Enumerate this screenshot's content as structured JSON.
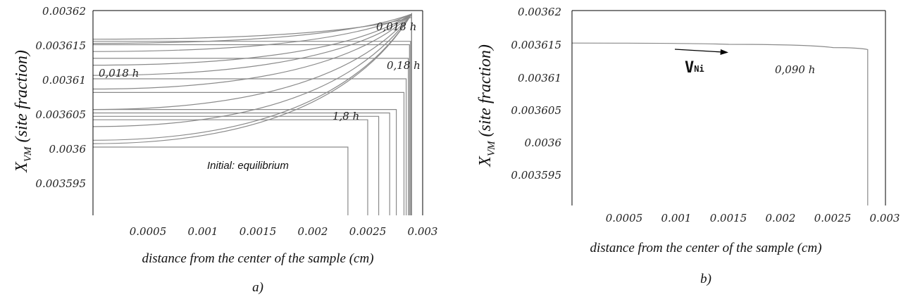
{
  "chart_data": [
    {
      "panel_label": "a)",
      "type": "line",
      "ylabel": {
        "main": "X",
        "sub": "VM",
        "suffix": " (site fraction)"
      },
      "xlabel": "distance from the center of the sample (cm)",
      "xlim": [
        0,
        0.003
      ],
      "ylim": [
        0.00359,
        0.00362
      ],
      "x_ticks": [
        "0.0005",
        "0.001",
        "0.0015",
        "0.002",
        "0.0025",
        "0.003"
      ],
      "y_ticks": [
        "0.00362",
        "0.003615",
        "0.00361",
        "0.003605",
        "0.0036",
        "0.003595"
      ],
      "annotations": [
        "0,018 h",
        "0,18 h",
        "0,018 h",
        "1,8 h"
      ],
      "initial_label": "Initial: equilibrium",
      "series": [
        {
          "values": [
            [
              0,
              0.0036
            ],
            [
              0.00232,
              0.0036
            ],
            [
              0.00232,
              0.00359
            ]
          ]
        },
        {
          "values": [
            [
              0,
              0.003604
            ],
            [
              0.0025,
              0.003604
            ],
            [
              0.0025,
              0.00359
            ]
          ]
        },
        {
          "values": [
            [
              0,
              0.0036045
            ],
            [
              0.0026,
              0.0036045
            ],
            [
              0.0026,
              0.00359
            ]
          ]
        },
        {
          "values": [
            [
              0,
              0.003605
            ],
            [
              0.0027,
              0.003605
            ],
            [
              0.0027,
              0.00359
            ]
          ]
        },
        {
          "values": [
            [
              0,
              0.0036055
            ],
            [
              0.00276,
              0.0036055
            ],
            [
              0.00276,
              0.00359
            ]
          ]
        },
        {
          "values": [
            [
              0,
              0.003608
            ],
            [
              0.00283,
              0.003608
            ],
            [
              0.00283,
              0.00359
            ]
          ]
        },
        {
          "values": [
            [
              0,
              0.00361
            ],
            [
              0.00285,
              0.00361
            ],
            [
              0.00285,
              0.00359
            ]
          ]
        },
        {
          "values": [
            [
              0,
              0.003613
            ],
            [
              0.00287,
              0.003613
            ],
            [
              0.00287,
              0.00359
            ]
          ]
        },
        {
          "values": [
            [
              0,
              0.003615
            ],
            [
              0.00288,
              0.003615
            ],
            [
              0.00288,
              0.00359
            ]
          ]
        },
        {
          "values": [
            [
              0,
              0.0036155
            ],
            [
              0.00289,
              0.0036155
            ],
            [
              0.00289,
              0.00359
            ]
          ]
        },
        {
          "values": [
            [
              0,
              0.0036158
            ],
            [
              0.0029,
              0.003619
            ],
            [
              0.0029,
              0.00359
            ]
          ]
        },
        {
          "values": [
            [
              0,
              0.0036152
            ],
            [
              0.0029,
              0.0036195
            ],
            [
              0.0029,
              0.00359
            ]
          ]
        },
        {
          "values": [
            [
              0,
              0.003614
            ],
            [
              0.0029,
              0.0036195
            ],
            [
              0.0029,
              0.00359
            ]
          ]
        },
        {
          "values": [
            [
              0,
              0.003612
            ],
            [
              0.0029,
              0.0036195
            ],
            [
              0.0029,
              0.00359
            ]
          ]
        },
        {
          "values": [
            [
              0,
              0.0036105
            ],
            [
              0.0029,
              0.0036195
            ],
            [
              0.0029,
              0.00359
            ]
          ]
        },
        {
          "values": [
            [
              0,
              0.0036085
            ],
            [
              0.0029,
              0.0036195
            ],
            [
              0.0029,
              0.00359
            ]
          ]
        },
        {
          "values": [
            [
              0,
              0.0036055
            ],
            [
              0.0029,
              0.0036195
            ],
            [
              0.0029,
              0.00359
            ]
          ]
        },
        {
          "values": [
            [
              0,
              0.003603
            ],
            [
              0.0029,
              0.0036195
            ],
            [
              0.0029,
              0.00359
            ]
          ]
        },
        {
          "values": [
            [
              0,
              0.003601
            ],
            [
              0.0029,
              0.0036195
            ],
            [
              0.0029,
              0.00359
            ]
          ]
        },
        {
          "values": [
            [
              0,
              0.0036005
            ],
            [
              0.0029,
              0.0036195
            ],
            [
              0.0029,
              0.00359
            ]
          ]
        }
      ]
    },
    {
      "panel_label": "b)",
      "type": "line",
      "ylabel": {
        "main": "X",
        "sub": "VM",
        "suffix": " (site fraction)"
      },
      "xlabel": "distance from the center of the sample (cm)",
      "xlim": [
        0,
        0.003
      ],
      "ylim": [
        0.00359,
        0.00362
      ],
      "x_ticks": [
        "0.0005",
        "0.001",
        "0.0015",
        "0.002",
        "0.0025",
        "0.003"
      ],
      "y_ticks": [
        "0.00362",
        "0.003615",
        "0.00361",
        "0.003605",
        "0.0036",
        "0.003595"
      ],
      "annotations": [
        "0,090 h"
      ],
      "arrow_label": {
        "main": "V",
        "sub": "Ni"
      },
      "series": [
        {
          "values": [
            [
              0,
              0.003615
            ],
            [
              0.0015,
              0.0036148
            ],
            [
              0.0025,
              0.0036143
            ],
            [
              0.00283,
              0.003614
            ],
            [
              0.00283,
              0.00359
            ]
          ]
        }
      ]
    }
  ]
}
